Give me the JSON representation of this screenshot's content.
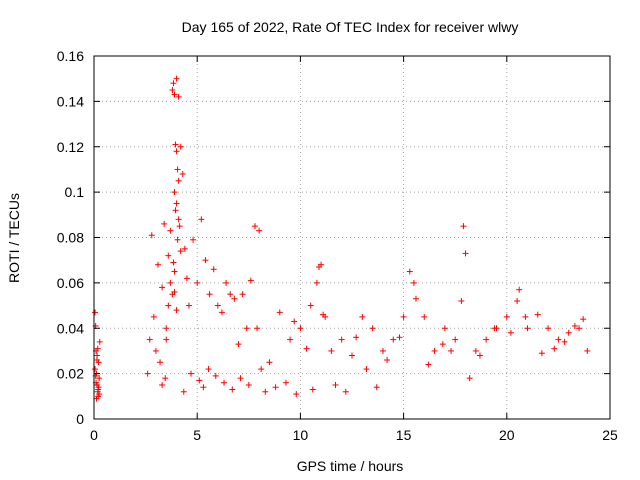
{
  "chart_data": {
    "type": "scatter",
    "title": "Day 165 of 2022, Rate Of TEC Index for receiver wlwy",
    "xlabel": "GPS time / hours",
    "ylabel": "ROTI / TECUs",
    "xlim": [
      0,
      25
    ],
    "ylim": [
      0,
      0.16
    ],
    "xticks": [
      0,
      5,
      10,
      15,
      20,
      25
    ],
    "yticks": [
      0,
      0.02,
      0.04,
      0.06,
      0.08,
      0.1,
      0.12,
      0.14,
      0.16
    ],
    "xtick_labels": [
      "0",
      "5",
      "10",
      "15",
      "20",
      "25"
    ],
    "ytick_labels": [
      "0",
      "0.02",
      "0.04",
      "0.06",
      "0.08",
      "0.1",
      "0.12",
      "0.14",
      "0.16"
    ],
    "grid": true,
    "marker": "+",
    "series": [
      {
        "name": "ROTI",
        "color": "#ff0000",
        "x": [
          0.05,
          0.08,
          0.1,
          0.12,
          0.15,
          0.18,
          0.2,
          0.22,
          0.25,
          0.28,
          0.05,
          0.1,
          0.15,
          0.2,
          0.12,
          0.18,
          0.08,
          0.22,
          0.14,
          0.25,
          2.6,
          2.7,
          2.8,
          2.9,
          3.0,
          3.1,
          3.2,
          3.3,
          3.4,
          3.5,
          3.6,
          3.7,
          3.8,
          3.9,
          4.0,
          4.1,
          4.2,
          4.3,
          4.4,
          4.5,
          3.8,
          3.85,
          3.9,
          3.95,
          4.0,
          4.05,
          4.1,
          3.9,
          4.0,
          4.1,
          3.95,
          4.05,
          3.85,
          4.15,
          3.9,
          4.0,
          4.2,
          3.5,
          3.6,
          3.7,
          4.6,
          4.8,
          5.0,
          5.2,
          5.4,
          5.6,
          5.8,
          6.0,
          6.2,
          6.4,
          6.6,
          6.8,
          7.0,
          7.2,
          7.4,
          7.6,
          7.8,
          8.0,
          7.9,
          8.1,
          8.5,
          9.0,
          9.5,
          10.0,
          10.5,
          10.8,
          11.0,
          11.2,
          11.5,
          12.0,
          12.5,
          13.0,
          13.5,
          14.0,
          14.5,
          15.0,
          15.5,
          16.0,
          16.5,
          17.0,
          17.5,
          17.8,
          17.9,
          18.0,
          18.5,
          19.0,
          19.5,
          20.0,
          20.5,
          21.0,
          21.5,
          22.0,
          22.5,
          23.0,
          23.5,
          23.9,
          10.9,
          11.1,
          12.7,
          14.2,
          15.3,
          15.6,
          16.9,
          17.3,
          18.7,
          19.4,
          20.2,
          20.6,
          21.7,
          22.3,
          22.8,
          23.3,
          23.7,
          9.7,
          10.3,
          13.2,
          14.8,
          16.2,
          18.2,
          20.9,
          3.3,
          3.45,
          4.35,
          4.7,
          5.1,
          5.3,
          5.55,
          5.9,
          6.3,
          6.7,
          7.1,
          7.5,
          8.3,
          8.8,
          9.3,
          9.8,
          10.6,
          11.7,
          12.2,
          13.7
        ],
        "y": [
          0.047,
          0.041,
          0.03,
          0.02,
          0.015,
          0.012,
          0.01,
          0.025,
          0.018,
          0.034,
          0.022,
          0.016,
          0.028,
          0.013,
          0.009,
          0.031,
          0.019,
          0.014,
          0.026,
          0.011,
          0.02,
          0.035,
          0.081,
          0.045,
          0.03,
          0.068,
          0.025,
          0.058,
          0.086,
          0.04,
          0.072,
          0.083,
          0.055,
          0.065,
          0.15,
          0.142,
          0.12,
          0.108,
          0.075,
          0.062,
          0.145,
          0.148,
          0.143,
          0.121,
          0.118,
          0.11,
          0.105,
          0.1,
          0.095,
          0.088,
          0.092,
          0.079,
          0.069,
          0.085,
          0.056,
          0.048,
          0.074,
          0.035,
          0.05,
          0.06,
          0.05,
          0.079,
          0.06,
          0.088,
          0.07,
          0.055,
          0.066,
          0.05,
          0.047,
          0.06,
          0.055,
          0.053,
          0.033,
          0.055,
          0.04,
          0.061,
          0.085,
          0.083,
          0.04,
          0.022,
          0.025,
          0.047,
          0.035,
          0.04,
          0.05,
          0.06,
          0.068,
          0.045,
          0.03,
          0.035,
          0.028,
          0.045,
          0.04,
          0.03,
          0.035,
          0.045,
          0.06,
          0.045,
          0.03,
          0.04,
          0.035,
          0.052,
          0.085,
          0.073,
          0.03,
          0.035,
          0.04,
          0.045,
          0.052,
          0.04,
          0.046,
          0.04,
          0.035,
          0.038,
          0.04,
          0.03,
          0.067,
          0.046,
          0.036,
          0.026,
          0.065,
          0.053,
          0.033,
          0.03,
          0.028,
          0.04,
          0.038,
          0.057,
          0.029,
          0.031,
          0.034,
          0.041,
          0.044,
          0.043,
          0.031,
          0.022,
          0.036,
          0.024,
          0.018,
          0.045,
          0.015,
          0.018,
          0.012,
          0.02,
          0.017,
          0.014,
          0.022,
          0.019,
          0.016,
          0.013,
          0.018,
          0.015,
          0.012,
          0.014,
          0.016,
          0.011,
          0.013,
          0.015,
          0.012,
          0.014
        ]
      }
    ]
  }
}
